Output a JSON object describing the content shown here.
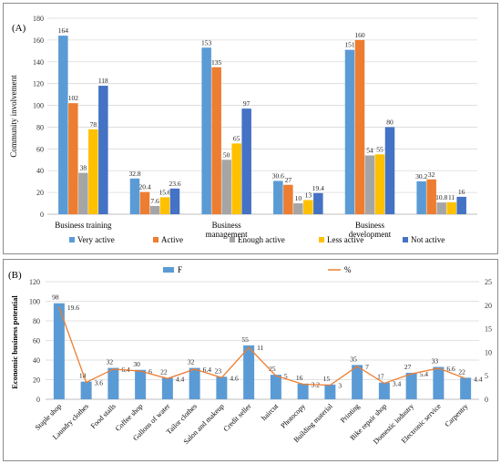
{
  "chart_data": [
    {
      "type": "bar",
      "panel_label": "(A)",
      "title": "",
      "xlabel": "",
      "ylabel": "Community involvement",
      "ylim": [
        0,
        180
      ],
      "yticks": [
        0,
        20,
        40,
        60,
        80,
        100,
        120,
        140,
        160,
        180
      ],
      "grid": true,
      "legend_position": "bottom",
      "categories": [
        "Business training",
        "",
        "Business management",
        "",
        "Business development",
        ""
      ],
      "series": [
        {
          "name": "Very active",
          "color": "#5b9bd5",
          "values": [
            164,
            32.8,
            153,
            30.6,
            151,
            30.2
          ]
        },
        {
          "name": "Active",
          "color": "#ed7d31",
          "values": [
            102,
            20.4,
            135,
            27,
            160,
            32
          ]
        },
        {
          "name": "Enough active",
          "color": "#a5a5a5",
          "values": [
            38,
            7.6,
            50,
            10,
            54,
            10.8
          ]
        },
        {
          "name": "Less active",
          "color": "#ffc000",
          "values": [
            78,
            15.6,
            65,
            13,
            55,
            11
          ]
        },
        {
          "name": "Not active",
          "color": "#4472c4",
          "values": [
            118,
            23.6,
            97,
            19.4,
            80,
            16
          ]
        }
      ]
    },
    {
      "type": "bar",
      "panel_label": "(B)",
      "title": "",
      "xlabel": "",
      "ylabel": "Economic business potential",
      "ylim": [
        0,
        120
      ],
      "yticks": [
        0,
        20,
        40,
        60,
        80,
        100,
        120
      ],
      "y2lim": [
        0,
        25
      ],
      "y2ticks": [
        0,
        5,
        10,
        15,
        20,
        25
      ],
      "grid": true,
      "legend_position": "top",
      "categories": [
        "Staple shop",
        "Laundry clothes",
        "Food stalls",
        "Coffee shop",
        "Gallons of water",
        "Tailor clothes",
        "Salon and makeup",
        "Credit seller",
        "haircut",
        "Photocopy",
        "Building material",
        "Printing",
        "Bike repair shop",
        "Domestic industry",
        "Electronic service",
        "Carpentry"
      ],
      "series": [
        {
          "name": "F",
          "kind": "bar",
          "axis": "left",
          "color": "#5b9bd5",
          "values": [
            98,
            18,
            32,
            30,
            22,
            32,
            23,
            55,
            25,
            16,
            15,
            35,
            17,
            27,
            33,
            22
          ]
        },
        {
          "name": "%",
          "kind": "line",
          "axis": "right",
          "color": "#ed7d31",
          "values": [
            19.6,
            3.6,
            6.4,
            6,
            4.4,
            6.4,
            4.6,
            11,
            5,
            3.2,
            3,
            7,
            3.4,
            5.4,
            6.6,
            4.4
          ]
        }
      ]
    }
  ]
}
